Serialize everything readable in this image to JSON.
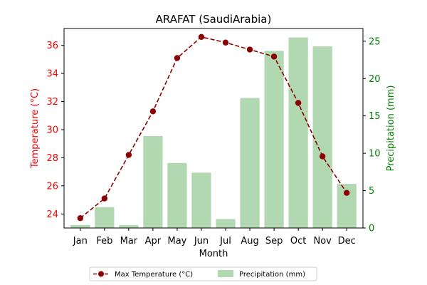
{
  "colors": {
    "temperature_line": "#8b0000",
    "precip_bars": "#b2d8b2",
    "left_axis": "#ff0000",
    "right_axis": "#008000"
  },
  "chart_data": {
    "type": "bar",
    "title": "ARAFAT (SaudiArabia)",
    "xlabel": "Month",
    "ylabel_left": "Temperature (°C)",
    "ylabel_right": "Precipitation (mm)",
    "categories": [
      "Jan",
      "Feb",
      "Mar",
      "Apr",
      "May",
      "Jun",
      "Jul",
      "Aug",
      "Sep",
      "Oct",
      "Nov",
      "Dec"
    ],
    "y_left": {
      "lim": [
        23.0,
        37.2
      ],
      "ticks": [
        24,
        26,
        28,
        30,
        32,
        34,
        36
      ]
    },
    "y_right": {
      "lim": [
        0,
        26.7
      ],
      "ticks": [
        0,
        5,
        10,
        15,
        20,
        25
      ]
    },
    "grid": false,
    "legend_position": "bottom-center",
    "series": [
      {
        "name": "Max Temperature (°C)",
        "type": "line",
        "axis": "left",
        "style": "dashed-with-markers",
        "values": [
          23.7,
          25.1,
          28.2,
          31.3,
          35.1,
          36.6,
          36.2,
          35.7,
          35.2,
          31.9,
          28.1,
          25.5
        ]
      },
      {
        "name": "Precipitation (mm)",
        "type": "bar",
        "axis": "right",
        "values": [
          0.4,
          2.8,
          0.4,
          12.3,
          8.7,
          7.4,
          1.2,
          17.4,
          23.7,
          25.5,
          24.3,
          5.9
        ]
      }
    ]
  }
}
